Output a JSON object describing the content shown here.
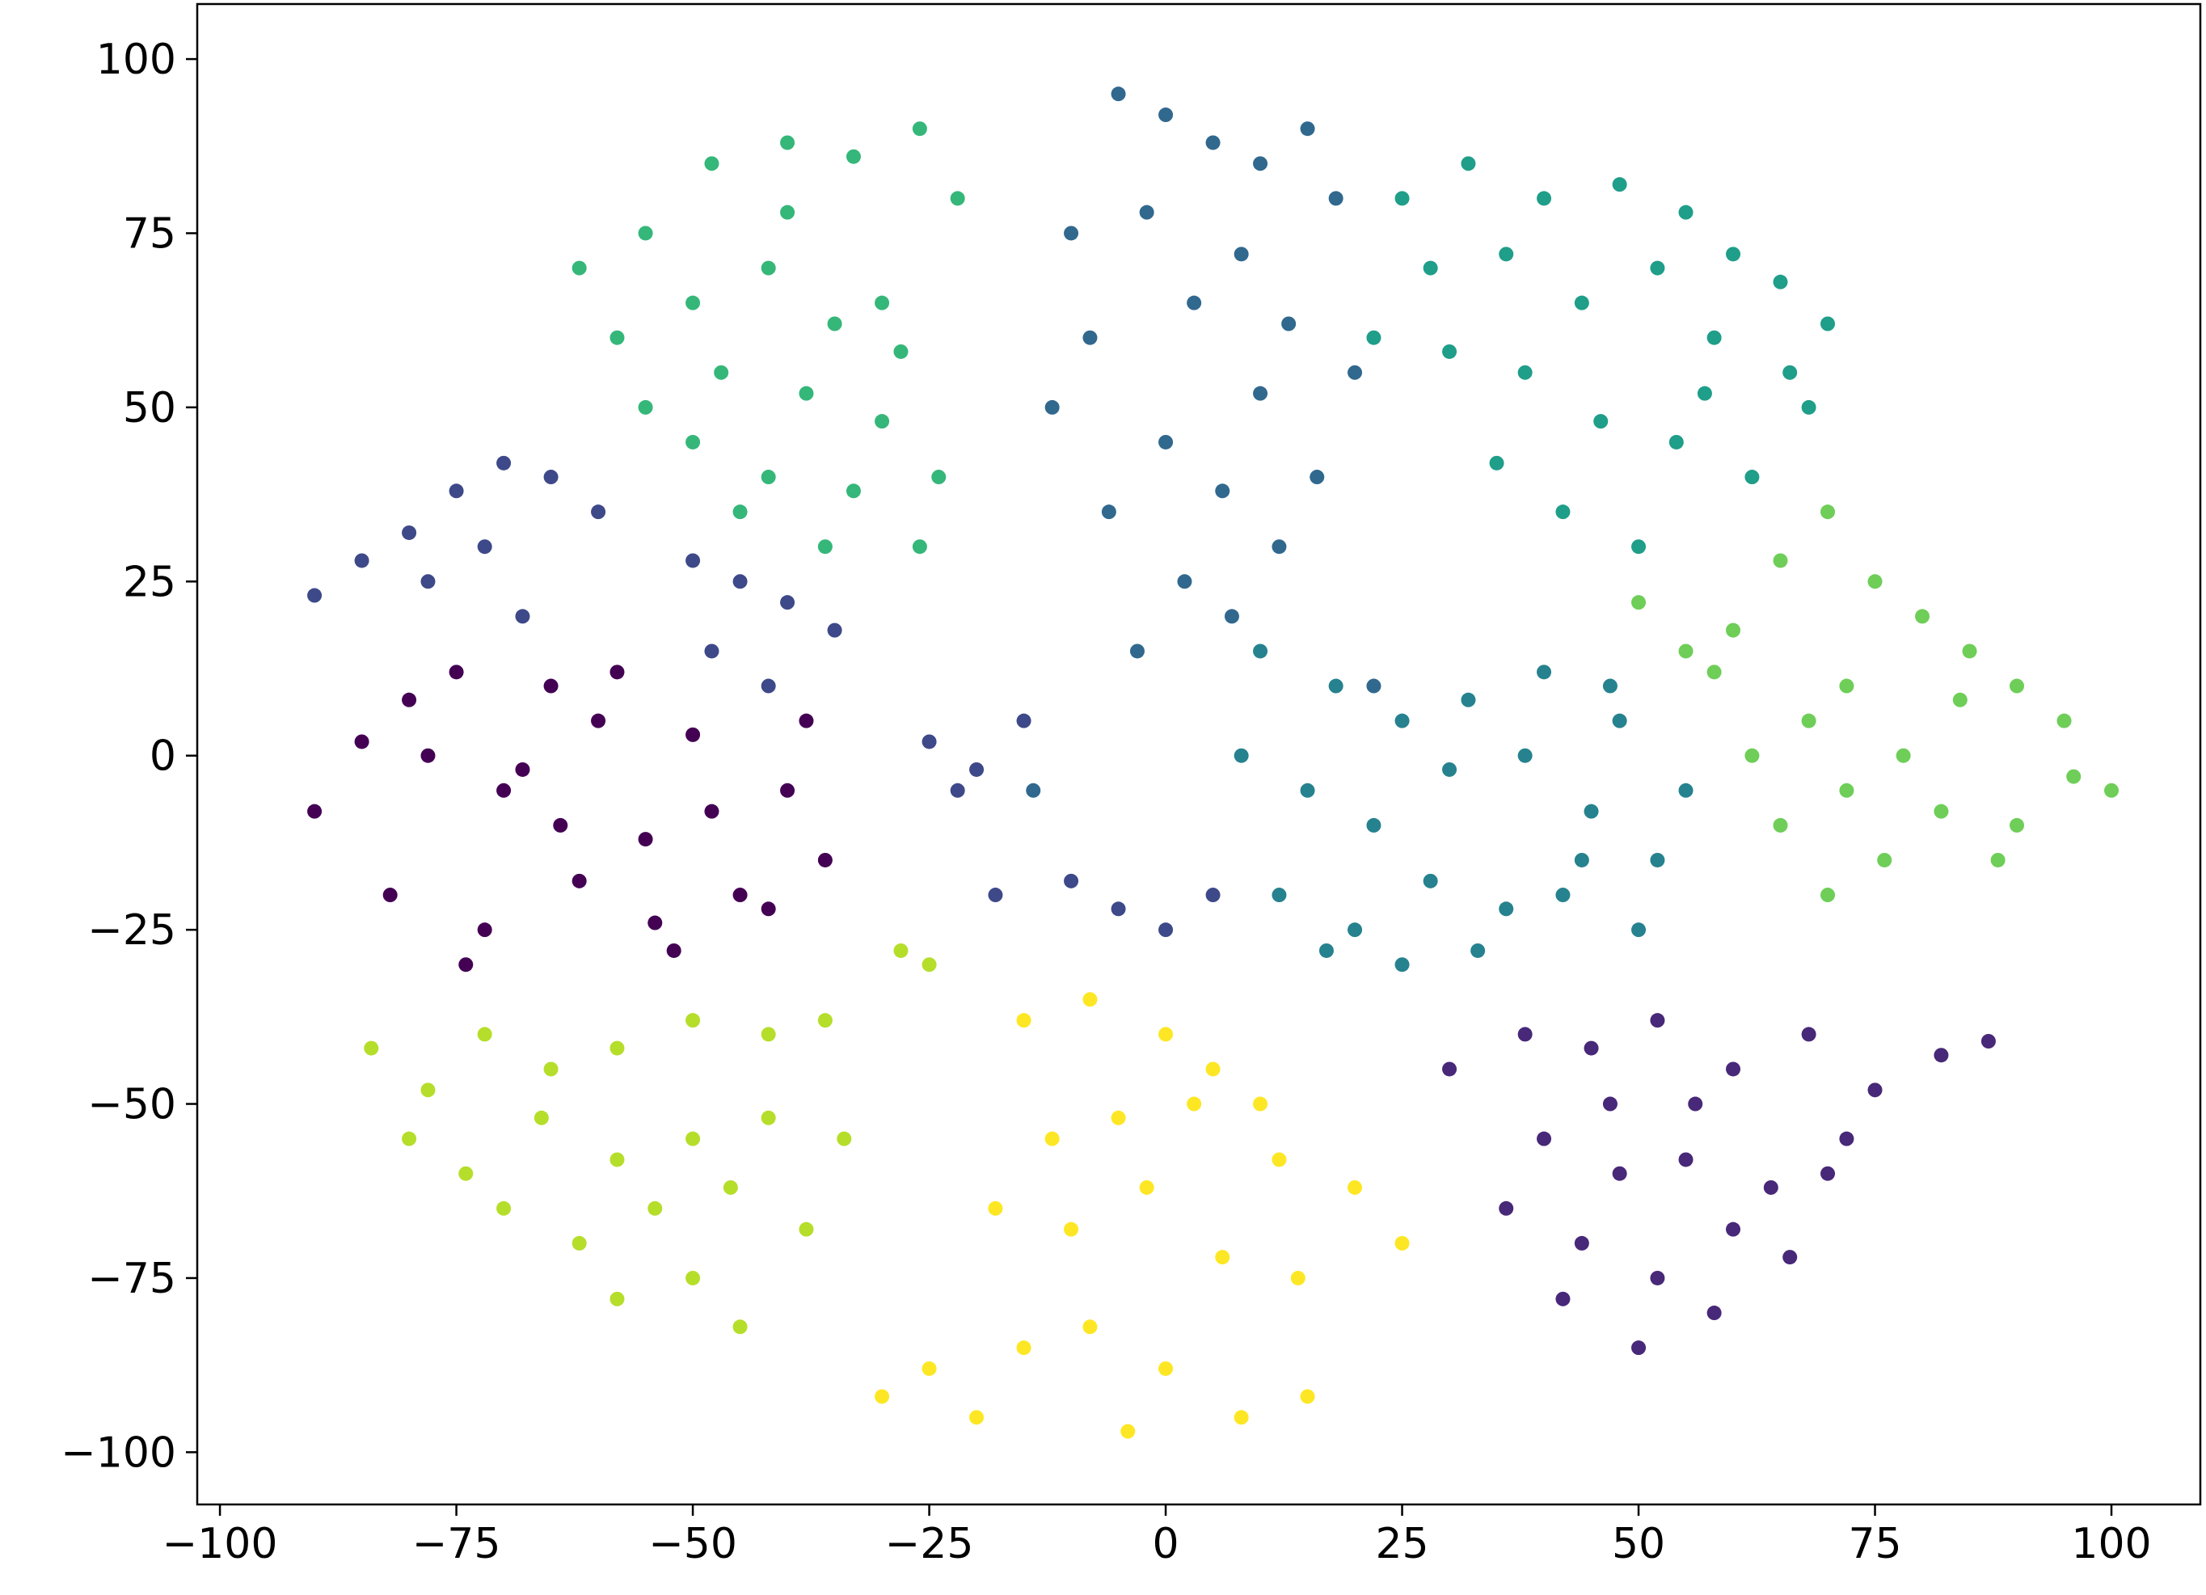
{
  "chart_data": {
    "type": "scatter",
    "xlim": [
      -102.4,
      109.4
    ],
    "ylim": [
      -107.5,
      107.9
    ],
    "xticks": [
      {
        "value": -100,
        "label": "−100"
      },
      {
        "value": -75,
        "label": "−75"
      },
      {
        "value": -50,
        "label": "−50"
      },
      {
        "value": -25,
        "label": "−25"
      },
      0,
      25,
      50,
      75,
      100
    ],
    "yticks": [
      {
        "value": -100,
        "label": "−100"
      },
      {
        "value": -75,
        "label": "−75"
      },
      {
        "value": -50,
        "label": "−50"
      },
      {
        "value": -25,
        "label": "−25"
      },
      0,
      25,
      50,
      75,
      100
    ],
    "grid": false,
    "series": [
      {
        "color": "#440154",
        "x": [
          -90,
          -85,
          -80,
          -75,
          -70,
          -65,
          -60,
          -55,
          -50,
          -45,
          -40,
          -36,
          -82,
          -72,
          -62,
          -52,
          -42,
          -78,
          -68,
          -58,
          -48,
          -38,
          -74,
          -64,
          -54
        ],
        "values": [
          -8,
          2,
          8,
          12,
          -5,
          10,
          5,
          -12,
          3,
          -20,
          -5,
          -15,
          -20,
          -25,
          -18,
          -28,
          -22,
          0,
          -2,
          12,
          -8,
          5,
          -30,
          -10,
          -24
        ]
      },
      {
        "color": "#482878",
        "x": [
          30,
          38,
          45,
          52,
          60,
          68,
          75,
          82,
          87,
          40,
          48,
          56,
          64,
          72,
          44,
          52,
          60,
          36,
          50,
          58,
          66,
          70,
          55,
          42,
          47
        ],
        "values": [
          -45,
          -40,
          -42,
          -38,
          -45,
          -40,
          -48,
          -43,
          -41,
          -55,
          -60,
          -50,
          -62,
          -55,
          -70,
          -75,
          -68,
          -65,
          -85,
          -80,
          -72,
          -60,
          -58,
          -78,
          -50
        ]
      },
      {
        "color": "#3e4989",
        "x": [
          -90,
          -85,
          -80,
          -75,
          -70,
          -65,
          -60,
          -72,
          -78,
          -68,
          -50,
          -45,
          -40,
          -35,
          -48,
          -42,
          -25,
          -20,
          -15,
          -22,
          -18,
          -10,
          -5,
          0,
          5
        ],
        "values": [
          23,
          28,
          32,
          38,
          42,
          40,
          35,
          30,
          25,
          20,
          28,
          25,
          22,
          18,
          15,
          10,
          2,
          -2,
          5,
          -5,
          -20,
          -18,
          -22,
          -25,
          -20
        ]
      },
      {
        "color": "#31688e",
        "x": [
          -5,
          0,
          5,
          10,
          15,
          -10,
          -2,
          8,
          18,
          -8,
          3,
          13,
          -12,
          0,
          10,
          20,
          -6,
          6,
          16,
          2,
          -3,
          12,
          7,
          -14,
          22
        ],
        "values": [
          95,
          92,
          88,
          85,
          90,
          75,
          78,
          72,
          80,
          60,
          65,
          62,
          50,
          45,
          52,
          55,
          35,
          38,
          40,
          25,
          15,
          30,
          20,
          -5,
          10
        ]
      },
      {
        "color": "#26828e",
        "x": [
          10,
          18,
          25,
          32,
          40,
          48,
          55,
          15,
          22,
          30,
          38,
          45,
          52,
          12,
          20,
          28,
          36,
          44,
          50,
          25,
          33,
          42,
          8,
          17,
          47
        ],
        "values": [
          15,
          10,
          5,
          8,
          12,
          5,
          -5,
          -5,
          -10,
          -2,
          0,
          -8,
          -15,
          -20,
          -25,
          -18,
          -22,
          -15,
          -25,
          -30,
          -28,
          -20,
          0,
          -28,
          10
        ]
      },
      {
        "color": "#1f9e89",
        "x": [
          25,
          32,
          40,
          48,
          55,
          60,
          65,
          70,
          28,
          36,
          44,
          52,
          58,
          66,
          30,
          38,
          46,
          54,
          62,
          68,
          35,
          42,
          50,
          22,
          57
        ],
        "values": [
          80,
          85,
          80,
          82,
          78,
          72,
          68,
          62,
          70,
          72,
          65,
          70,
          60,
          55,
          58,
          55,
          48,
          45,
          40,
          50,
          42,
          35,
          30,
          60,
          52
        ]
      },
      {
        "color": "#35b779",
        "x": [
          -62,
          -55,
          -48,
          -40,
          -33,
          -26,
          -22,
          -58,
          -50,
          -42,
          -35,
          -28,
          -55,
          -47,
          -38,
          -30,
          -24,
          -50,
          -42,
          -33,
          -26,
          -45,
          -36,
          -30,
          -40
        ],
        "values": [
          70,
          75,
          85,
          88,
          86,
          90,
          80,
          60,
          65,
          70,
          62,
          58,
          50,
          55,
          52,
          48,
          40,
          45,
          40,
          38,
          30,
          35,
          30,
          65,
          78
        ]
      },
      {
        "color": "#6ece58",
        "x": [
          50,
          55,
          60,
          65,
          70,
          75,
          80,
          85,
          90,
          95,
          100,
          58,
          62,
          68,
          72,
          78,
          84,
          90,
          96,
          65,
          70,
          76,
          82,
          88,
          72
        ],
        "values": [
          22,
          15,
          18,
          28,
          35,
          25,
          20,
          15,
          10,
          5,
          -5,
          12,
          0,
          5,
          -5,
          0,
          8,
          -10,
          -3,
          -10,
          -20,
          -15,
          -8,
          -15,
          10
        ]
      },
      {
        "color": "#b5de2b",
        "x": [
          -84,
          -78,
          -72,
          -65,
          -58,
          -50,
          -42,
          -36,
          -80,
          -74,
          -66,
          -58,
          -50,
          -42,
          -34,
          -70,
          -62,
          -54,
          -46,
          -38,
          -58,
          -50,
          -45,
          -28,
          -25
        ],
        "values": [
          -42,
          -48,
          -40,
          -45,
          -42,
          -38,
          -40,
          -38,
          -55,
          -60,
          -52,
          -58,
          -55,
          -52,
          -55,
          -65,
          -70,
          -65,
          -62,
          -68,
          -78,
          -75,
          -82,
          -28,
          -30
        ]
      },
      {
        "color": "#fde725",
        "x": [
          -15,
          -8,
          0,
          5,
          10,
          -12,
          -5,
          3,
          12,
          20,
          25,
          -18,
          -10,
          -2,
          6,
          14,
          -30,
          -25,
          -20,
          -15,
          -8,
          0,
          8,
          15,
          -4
        ],
        "values": [
          -38,
          -35,
          -40,
          -45,
          -50,
          -55,
          -52,
          -50,
          -58,
          -62,
          -70,
          -65,
          -68,
          -62,
          -72,
          -75,
          -92,
          -88,
          -95,
          -85,
          -82,
          -88,
          -95,
          -92,
          -97
        ]
      }
    ]
  }
}
